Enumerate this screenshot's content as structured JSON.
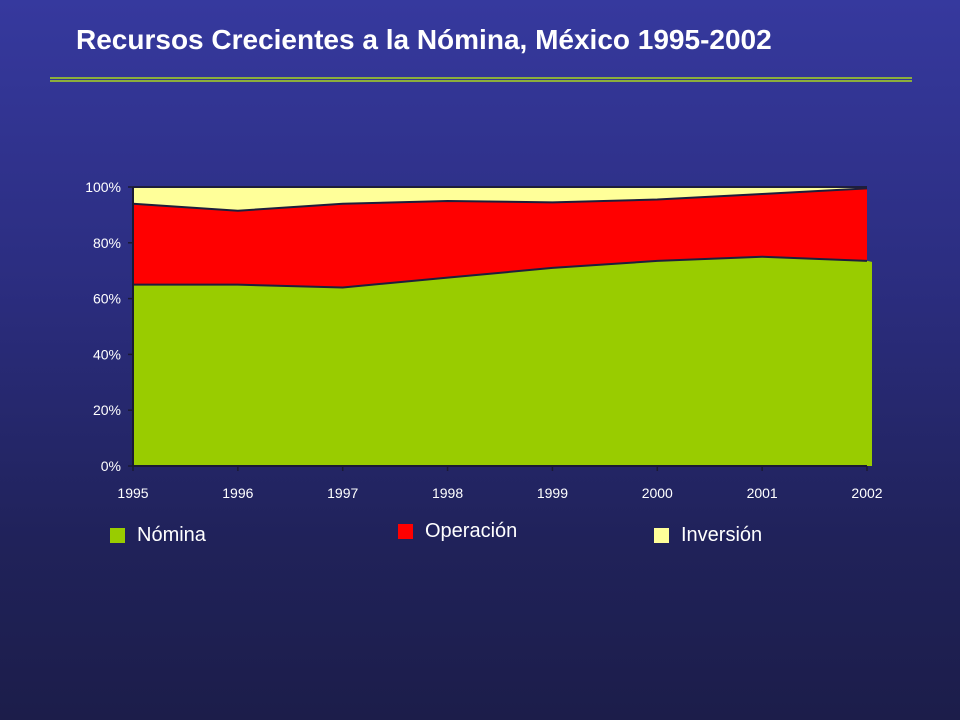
{
  "title": "Recursos Crecientes a la Nómina, México 1995-2002",
  "chart_data": {
    "type": "area",
    "stacked": true,
    "x": [
      "1995",
      "1996",
      "1997",
      "1998",
      "1999",
      "2000",
      "2001",
      "2002"
    ],
    "y_ticks": [
      "0%",
      "20%",
      "40%",
      "60%",
      "80%",
      "100%"
    ],
    "ylim": [
      0,
      100
    ],
    "series": [
      {
        "name": "Nómina",
        "color": "#99cc00",
        "values": [
          65,
          65,
          64,
          67.5,
          71,
          73.5,
          75,
          73.5
        ]
      },
      {
        "name": "Operación",
        "color": "#ff0000",
        "values": [
          29,
          26.5,
          30,
          27.5,
          23.5,
          22,
          22.5,
          26
        ]
      },
      {
        "name": "Inversión",
        "color": "#ffff99",
        "values": [
          6,
          8.5,
          6,
          5,
          5.5,
          4.5,
          2.5,
          0.5
        ]
      }
    ],
    "legend_placement": "bottom",
    "grid": false
  },
  "legend": [
    {
      "label": "Nómina",
      "color": "#99cc00"
    },
    {
      "label": "Operación",
      "color": "#ff0000"
    },
    {
      "label": "Inversión",
      "color": "#ffff99"
    }
  ]
}
